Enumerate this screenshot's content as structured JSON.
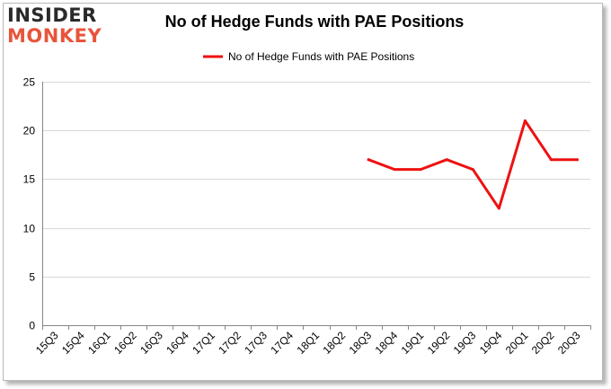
{
  "branding": {
    "logo_line1": "INSIDER",
    "logo_line2": "MONKEY"
  },
  "chart_data": {
    "type": "line",
    "title": "No of Hedge Funds with PAE Positions",
    "xlabel": "",
    "ylabel": "",
    "categories": [
      "15Q3",
      "15Q4",
      "16Q1",
      "16Q2",
      "16Q3",
      "16Q4",
      "17Q1",
      "17Q2",
      "17Q3",
      "17Q4",
      "18Q1",
      "18Q2",
      "18Q3",
      "18Q4",
      "19Q1",
      "19Q2",
      "19Q3",
      "19Q4",
      "20Q1",
      "20Q2",
      "20Q3"
    ],
    "series": [
      {
        "name": "No of Hedge Funds with PAE Positions",
        "color": "#ee1111",
        "values": [
          null,
          null,
          null,
          null,
          null,
          null,
          null,
          null,
          null,
          null,
          null,
          null,
          17,
          16,
          16,
          17,
          16,
          12,
          21,
          17,
          17
        ]
      }
    ],
    "ylim": [
      0,
      25
    ],
    "yticks": [
      0,
      5,
      10,
      15,
      20,
      25
    ],
    "grid": true,
    "legend_position": "top-center"
  }
}
